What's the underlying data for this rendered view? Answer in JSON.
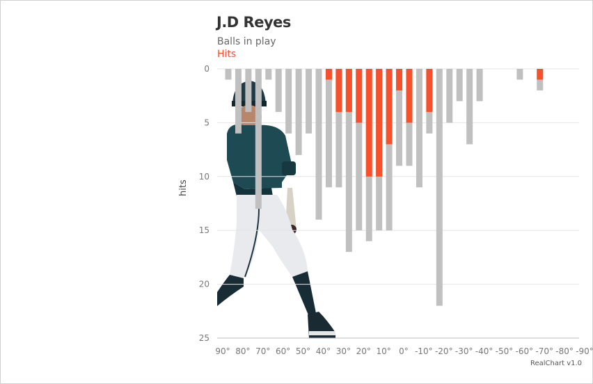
{
  "chart_data": {
    "type": "bar",
    "title": "J.D Reyes",
    "subtitle": "Balls in play",
    "legend": [
      "Hits"
    ],
    "ylabel": "hits",
    "ylim": [
      0,
      25
    ],
    "y_ticks": [
      "0",
      "5",
      "10",
      "15",
      "20",
      "25"
    ],
    "y_inverted": true,
    "categories": [
      "90°",
      "80°",
      "70°",
      "60°",
      "50°",
      "40°",
      "30°",
      "20°",
      "10°",
      "0°",
      "-10°",
      "-20°",
      "-30°",
      "-40°",
      "-50°",
      "-60°",
      "-70°",
      "-80°",
      "-90°"
    ],
    "series": [
      {
        "name": "Balls in play",
        "x": [
          90,
          85,
          80,
          75,
          70,
          65,
          60,
          55,
          50,
          45,
          40,
          35,
          30,
          25,
          20,
          15,
          10,
          5,
          0,
          -5,
          -10,
          -15,
          -20,
          -25,
          -30,
          -35,
          -40,
          -45,
          -55,
          -65
        ],
        "values": [
          1,
          6,
          4,
          13,
          1,
          4,
          6,
          8,
          6,
          14,
          11,
          11,
          17,
          15,
          16,
          15,
          15,
          9,
          9,
          11,
          6,
          22,
          5,
          3,
          7,
          3,
          0,
          0,
          1,
          2
        ]
      },
      {
        "name": "Hits",
        "x": [
          90,
          85,
          80,
          75,
          70,
          65,
          60,
          55,
          50,
          45,
          40,
          35,
          30,
          25,
          20,
          15,
          10,
          5,
          0,
          -5,
          -10,
          -15,
          -20,
          -25,
          -30,
          -35,
          -40,
          -45,
          -55,
          -65
        ],
        "values": [
          0,
          0,
          0,
          0,
          0,
          0,
          0,
          0,
          0,
          0,
          1,
          4,
          4,
          5,
          10,
          10,
          7,
          2,
          5,
          0,
          4,
          0,
          0,
          0,
          0,
          0,
          0,
          0,
          0,
          1
        ]
      }
    ],
    "colors": {
      "total": "#c0c0c0",
      "hits": "#f4512c"
    },
    "grid": true
  },
  "footer": {
    "credit": "RealChart v1.0"
  }
}
